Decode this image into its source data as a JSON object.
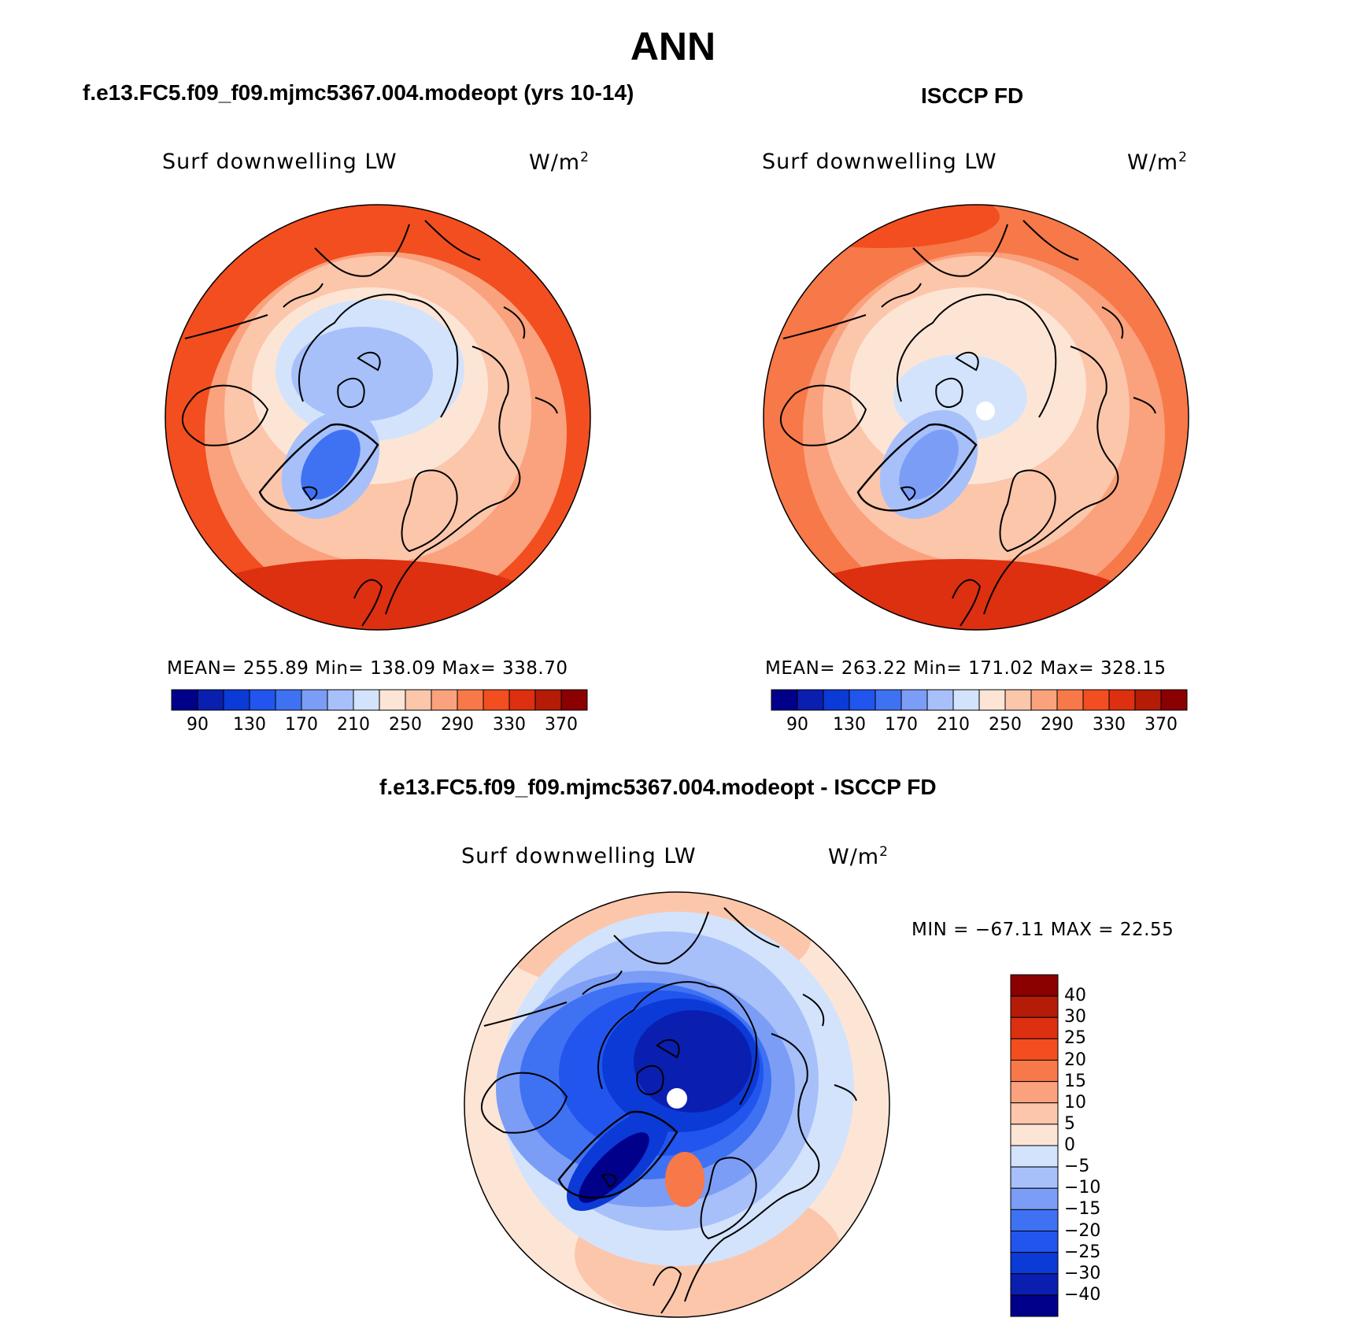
{
  "main_title": "ANN",
  "panels": [
    {
      "title": "f.e13.FC5.f09_f09.mjmc5367.004.modeopt (yrs 10-14)",
      "variable": "Surf downwelling LW",
      "units": "W/m",
      "units_sup": "2",
      "stats": "MEAN= 255.89   Min= 138.09   Max= 338.70",
      "pole_hole": false,
      "scheme": "model"
    },
    {
      "title": "ISCCP FD",
      "variable": "Surf downwelling LW",
      "units": "W/m",
      "units_sup": "2",
      "stats": "MEAN= 263.22   Min= 171.02   Max= 328.15",
      "pole_hole": true,
      "scheme": "obs"
    },
    {
      "title": "f.e13.FC5.f09_f09.mjmc5367.004.modeopt - ISCCP FD",
      "variable": "Surf downwelling LW",
      "units": "W/m",
      "units_sup": "2",
      "stats": "MIN = −67.11 MAX =  22.55",
      "pole_hole": true,
      "scheme": "diff"
    }
  ],
  "abs_colorbar": {
    "colors": [
      "#00008b",
      "#0a1fb0",
      "#0c3ad6",
      "#2255ee",
      "#3f72f2",
      "#7b9df6",
      "#a7c0fa",
      "#d3e3fc",
      "#fde5d6",
      "#fcc6ab",
      "#f9a27d",
      "#f77848",
      "#f24e20",
      "#dc3010",
      "#b41c08",
      "#8b0000"
    ],
    "labels": [
      "90",
      "130",
      "170",
      "210",
      "250",
      "290",
      "330",
      "370"
    ]
  },
  "diff_colorbar": {
    "colors_top_to_bottom": [
      "#8b0000",
      "#b41c08",
      "#dc3010",
      "#f24e20",
      "#f77848",
      "#f9a27d",
      "#fcc6ab",
      "#fde5d6",
      "#d3e3fc",
      "#a7c0fa",
      "#7b9df6",
      "#3f72f2",
      "#2255ee",
      "#0c3ad6",
      "#0a1fb0",
      "#00008b"
    ],
    "labels": [
      "40",
      "30",
      "25",
      "20",
      "15",
      "10",
      "5",
      "0",
      "−5",
      "−10",
      "−15",
      "−20",
      "−25",
      "−30",
      "−40"
    ]
  }
}
